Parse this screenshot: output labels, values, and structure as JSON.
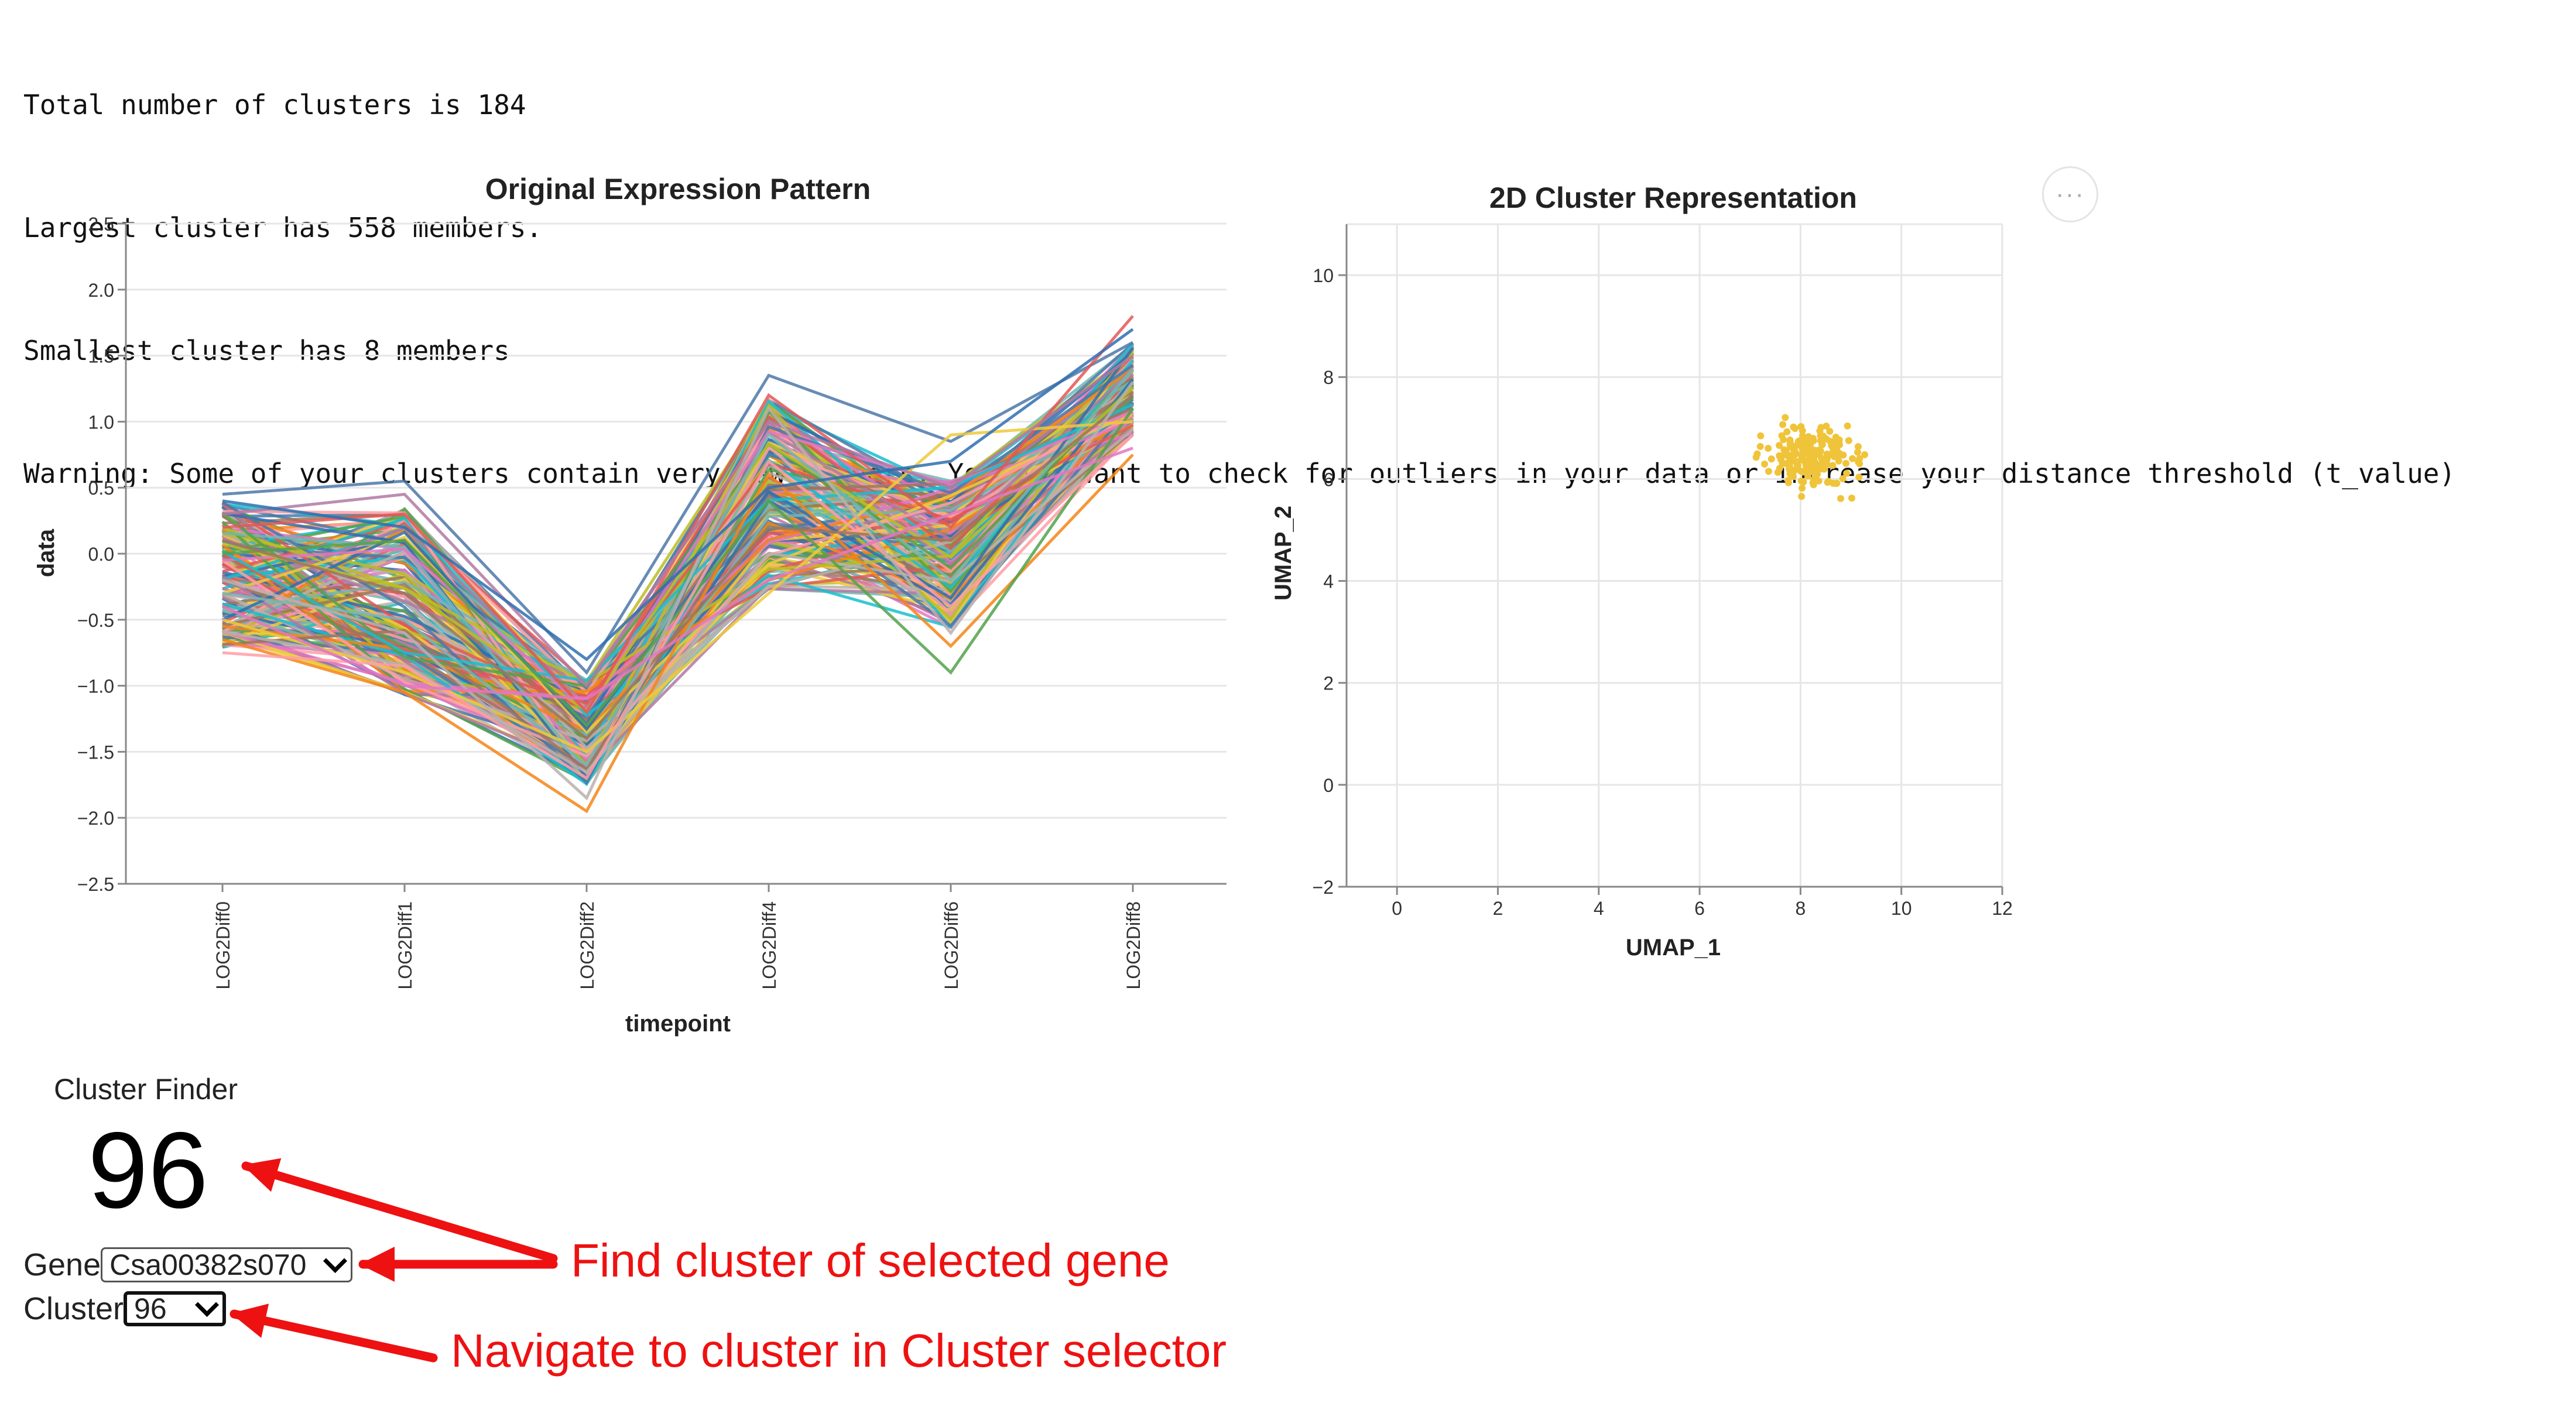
{
  "log": {
    "lines": [
      "Total number of clusters is 184",
      "Largest cluster has 558 members.",
      "Smallest cluster has 8 members",
      "Warning: Some of your clusters contain very few members. You may want to check for outliers in your data or increase your distance threshold (t_value)"
    ]
  },
  "chart_data": [
    {
      "type": "line",
      "title": "Original Expression Pattern",
      "xlabel": "timepoint",
      "ylabel": "data",
      "categories": [
        "LOG2Diff0",
        "LOG2Diff1",
        "LOG2Diff2",
        "LOG2Diff4",
        "LOG2Diff6",
        "LOG2Diff8"
      ],
      "ylim": [
        -2.5,
        2.5
      ],
      "yticks": [
        "2.5",
        "2.0",
        "1.5",
        "1.0",
        "0.5",
        "0.0",
        "−0.5",
        "−1.0",
        "−1.5",
        "−2.0",
        "−2.5"
      ],
      "series_count_approx": 180,
      "series": [
        {
          "values": [
            0.45,
            0.55,
            -0.9,
            1.35,
            0.85,
            1.6
          ]
        },
        {
          "values": [
            -0.65,
            -1.05,
            -1.95,
            0.6,
            -0.7,
            0.75
          ]
        },
        {
          "values": [
            0.2,
            0.3,
            -1.2,
            1.2,
            0.2,
            1.8
          ]
        },
        {
          "values": [
            -0.3,
            -0.5,
            -1.6,
            0.9,
            -0.2,
            1.4
          ]
        },
        {
          "values": [
            0.0,
            0.1,
            -1.3,
            0.4,
            -0.9,
            1.1
          ]
        },
        {
          "values": [
            -0.5,
            -0.9,
            -1.5,
            -0.3,
            0.9,
            1.0
          ]
        },
        {
          "values": [
            0.3,
            0.45,
            -1.0,
            1.0,
            0.5,
            1.5
          ]
        },
        {
          "values": [
            -0.75,
            -0.85,
            -1.7,
            0.7,
            -0.4,
            0.9
          ]
        },
        {
          "values": [
            0.1,
            -0.3,
            -1.4,
            0.2,
            0.1,
            1.2
          ]
        },
        {
          "values": [
            -0.2,
            -0.6,
            -1.85,
            1.1,
            -0.6,
            1.3
          ]
        },
        {
          "values": [
            0.4,
            0.2,
            -0.8,
            0.5,
            0.7,
            1.7
          ]
        },
        {
          "values": [
            -0.4,
            -1.0,
            -1.1,
            -0.2,
            0.3,
            0.8
          ]
        }
      ],
      "grid": true
    },
    {
      "type": "scatter",
      "title": "2D Cluster Representation",
      "xlabel": "UMAP_1",
      "ylabel": "UMAP_2",
      "xlim": [
        -1,
        12
      ],
      "ylim": [
        -2,
        11
      ],
      "xticks": [
        "0",
        "2",
        "4",
        "6",
        "8",
        "10",
        "12"
      ],
      "yticks": [
        "10",
        "8",
        "6",
        "4",
        "2",
        "0",
        "−2"
      ],
      "color": "#f0c43a",
      "cluster_center": [
        8.2,
        6.4
      ],
      "point_count_approx": 200,
      "grid": true
    }
  ],
  "cluster_finder": {
    "title": "Cluster Finder",
    "number": "96",
    "gene_label": "Gene",
    "gene_value": "Csa00382s070",
    "cluster_label": "Cluster",
    "cluster_value": "96"
  },
  "annotations": {
    "gene_note": "Find cluster of selected gene",
    "cluster_note": "Navigate to cluster in Cluster selector",
    "color": "#ee1111"
  },
  "menu": {
    "label": "···"
  },
  "palette": [
    "#4c78a8",
    "#f58518",
    "#e45756",
    "#72b7b2",
    "#54a24b",
    "#eeca3b",
    "#b279a2",
    "#ff9da6",
    "#9d755d",
    "#bab0ac",
    "#2f6fb0",
    "#e377c2",
    "#17becf",
    "#bcbd22"
  ]
}
